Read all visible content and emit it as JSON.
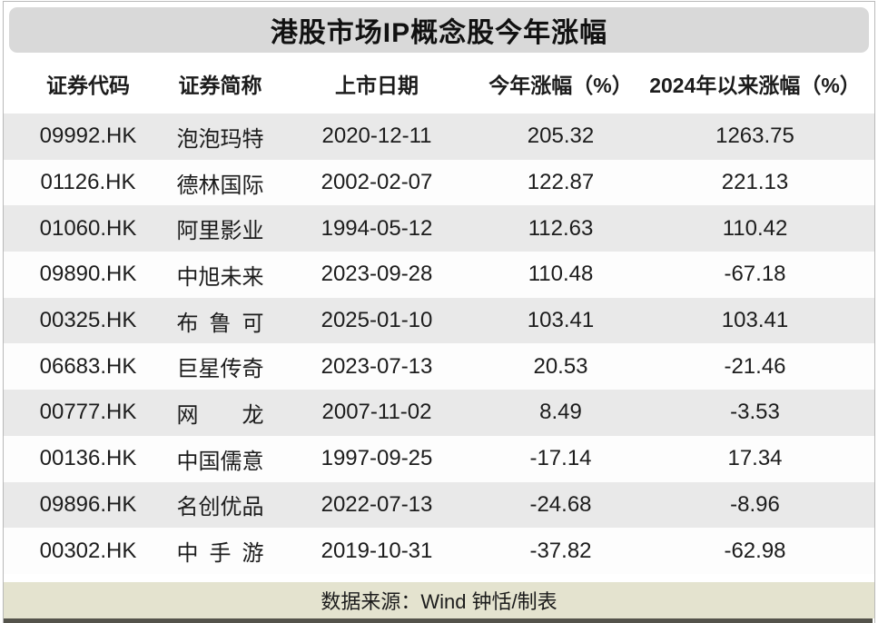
{
  "chart_data": {
    "type": "table",
    "title": "港股市场IP概念股今年涨幅",
    "columns": [
      "证券代码",
      "证券简称",
      "上市日期",
      "今年涨幅（%）",
      "2024年以来涨幅（%）"
    ],
    "rows": [
      [
        "09992.HK",
        "泡泡玛特",
        "2020-12-11",
        "205.32",
        "1263.75"
      ],
      [
        "01126.HK",
        "德林国际",
        "2002-02-07",
        "122.87",
        "221.13"
      ],
      [
        "01060.HK",
        "阿里影业",
        "1994-05-12",
        "112.63",
        "110.42"
      ],
      [
        "09890.HK",
        "中旭未来",
        "2023-09-28",
        "110.48",
        "-67.18"
      ],
      [
        "00325.HK",
        "布鲁可",
        "2025-01-10",
        "103.41",
        "103.41"
      ],
      [
        "06683.HK",
        "巨星传奇",
        "2023-07-13",
        "20.53",
        "-21.46"
      ],
      [
        "00777.HK",
        "网龙",
        "2007-11-02",
        "8.49",
        "-3.53"
      ],
      [
        "00136.HK",
        "中国儒意",
        "1997-09-25",
        "-17.14",
        "17.34"
      ],
      [
        "09896.HK",
        "名创优品",
        "2022-07-13",
        "-24.68",
        "-8.96"
      ],
      [
        "00302.HK",
        "中手游",
        "2019-10-31",
        "-37.82",
        "-62.98"
      ]
    ],
    "source_note": "数据来源：Wind 钟恬/制表",
    "layout": {
      "striped": true,
      "stripe_pattern": "odd-rows-gray"
    }
  },
  "colors": {
    "title_bar_bg": "#d9d9d9",
    "stripe_row_bg": "#e9e9e9",
    "white_row_bg": "#fdfdfd",
    "footer_bg": "#e4e3cf",
    "bottom_edge": "#54534b",
    "text": "#1c1c1c"
  }
}
